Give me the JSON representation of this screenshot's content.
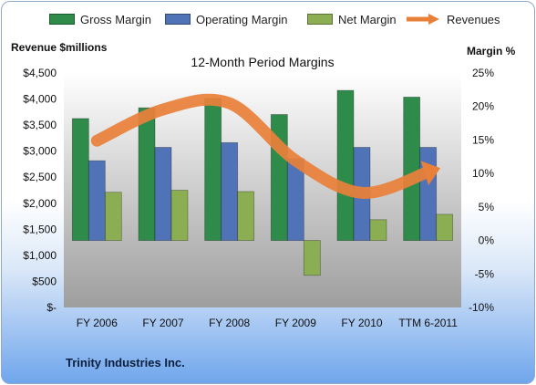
{
  "chart_data": {
    "type": "bar",
    "title": "12-Month Period Margins",
    "ylabel_left": "Revenue $millions",
    "ylabel_right": "Margin %",
    "categories": [
      "FY 2006",
      "FY 2007",
      "FY 2008",
      "FY 2009",
      "FY 2010",
      "TTM 6-2011"
    ],
    "left_axis": {
      "range": [
        0,
        4500
      ],
      "ticks": [
        "$-",
        "$500",
        "$1,000",
        "$1,500",
        "$2,000",
        "$2,500",
        "$3,000",
        "$3,500",
        "$4,000",
        "$4,500"
      ]
    },
    "right_axis": {
      "range": [
        -10,
        25
      ],
      "ticks": [
        "-10%",
        "-5%",
        "0%",
        "5%",
        "10%",
        "15%",
        "20%",
        "25%"
      ]
    },
    "series": [
      {
        "name": "Gross Margin",
        "type": "bar",
        "axis": "right",
        "color": "#2e8b4a",
        "values": [
          18.2,
          19.8,
          21.2,
          18.8,
          22.4,
          21.4
        ]
      },
      {
        "name": "Operating Margin",
        "type": "bar",
        "axis": "right",
        "color": "#4f73b6",
        "values": [
          11.9,
          13.9,
          14.6,
          12.2,
          13.9,
          13.9
        ]
      },
      {
        "name": "Net Margin",
        "type": "bar",
        "axis": "right",
        "color": "#8cae52",
        "values": [
          7.2,
          7.5,
          7.3,
          -5.2,
          3.1,
          3.9
        ]
      },
      {
        "name": "Revenues",
        "type": "line",
        "axis": "left",
        "color": "#e8803a",
        "values": [
          3200,
          3800,
          3920,
          2820,
          2200,
          2600
        ]
      }
    ],
    "grid": false,
    "legend_position": "top"
  },
  "footer": {
    "company": "Trinity Industries Inc."
  }
}
